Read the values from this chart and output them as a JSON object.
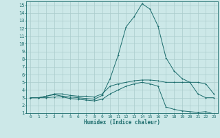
{
  "xlabel": "Humidex (Indice chaleur)",
  "bg_color": "#cce8e8",
  "grid_color": "#aacccc",
  "line_color": "#1a6b6b",
  "xlim": [
    -0.5,
    23.5
  ],
  "ylim": [
    1,
    15.5
  ],
  "xticks": [
    0,
    1,
    2,
    3,
    4,
    5,
    6,
    7,
    8,
    9,
    10,
    11,
    12,
    13,
    14,
    15,
    16,
    17,
    18,
    19,
    20,
    21,
    22,
    23
  ],
  "yticks": [
    1,
    2,
    3,
    4,
    5,
    6,
    7,
    8,
    9,
    10,
    11,
    12,
    13,
    14,
    15
  ],
  "line1_x": [
    0,
    1,
    2,
    3,
    4,
    5,
    6,
    7,
    8,
    9,
    10,
    11,
    12,
    13,
    14,
    15,
    16,
    17,
    18,
    19,
    20,
    21,
    22,
    23
  ],
  "line1_y": [
    3.0,
    3.0,
    3.2,
    3.4,
    3.2,
    3.1,
    3.0,
    2.9,
    2.8,
    3.3,
    5.5,
    8.5,
    12.2,
    13.5,
    15.2,
    14.5,
    12.3,
    8.2,
    6.5,
    5.5,
    5.0,
    5.0,
    4.8,
    3.5
  ],
  "line2_x": [
    0,
    1,
    2,
    3,
    4,
    5,
    6,
    7,
    8,
    9,
    10,
    11,
    12,
    13,
    14,
    15,
    16,
    17,
    18,
    19,
    20,
    21,
    22,
    23
  ],
  "line2_y": [
    3.0,
    3.0,
    3.2,
    3.5,
    3.5,
    3.3,
    3.2,
    3.2,
    3.1,
    3.5,
    4.5,
    4.8,
    5.0,
    5.2,
    5.3,
    5.3,
    5.2,
    5.0,
    5.0,
    5.0,
    5.0,
    3.5,
    3.0,
    3.0
  ],
  "line3_x": [
    0,
    1,
    2,
    3,
    4,
    5,
    6,
    7,
    8,
    9,
    10,
    11,
    12,
    13,
    14,
    15,
    16,
    17,
    18,
    19,
    20,
    21,
    22,
    23
  ],
  "line3_y": [
    3.0,
    3.0,
    3.0,
    3.1,
    3.1,
    2.9,
    2.8,
    2.7,
    2.6,
    2.8,
    3.5,
    4.0,
    4.5,
    4.8,
    5.0,
    4.8,
    4.5,
    1.8,
    1.5,
    1.3,
    1.2,
    1.1,
    1.2,
    0.9
  ],
  "xlabel_fontsize": 5.5,
  "tick_fontsize_x": 4.5,
  "tick_fontsize_y": 5.0
}
